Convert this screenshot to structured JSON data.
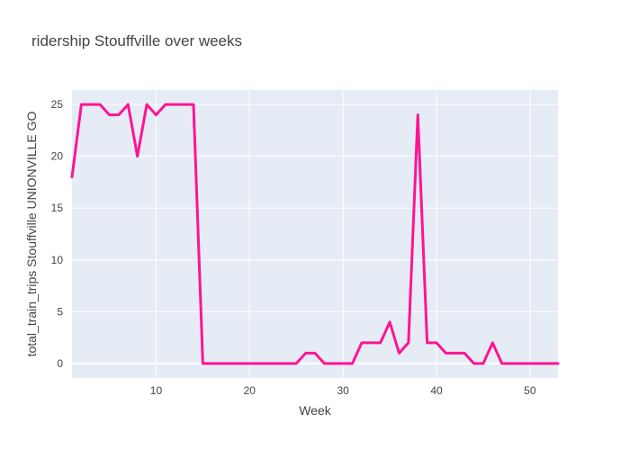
{
  "chart_data": {
    "type": "line",
    "title": "ridership Stouffville over weeks",
    "xlabel": "Week",
    "ylabel": "total_train_trips Stouffville UNIONVILLE GO",
    "xlim": [
      1,
      53
    ],
    "ylim": [
      -1.4,
      26.4
    ],
    "x_ticks": [
      10,
      20,
      30,
      40,
      50
    ],
    "y_ticks": [
      0,
      5,
      10,
      15,
      20,
      25
    ],
    "grid": true,
    "legend": "none",
    "plot_bg": "#E5ECF6",
    "series": [
      {
        "color": "#FF1493",
        "x": [
          1,
          2,
          3,
          4,
          5,
          6,
          7,
          8,
          9,
          10,
          11,
          12,
          13,
          14,
          15,
          16,
          17,
          18,
          19,
          20,
          21,
          22,
          23,
          24,
          25,
          26,
          27,
          28,
          29,
          30,
          31,
          32,
          33,
          34,
          35,
          36,
          37,
          38,
          39,
          40,
          41,
          42,
          43,
          44,
          45,
          46,
          47,
          48,
          49,
          50,
          51,
          52,
          53
        ],
        "y": [
          18,
          25,
          25,
          25,
          24,
          24,
          25,
          20,
          25,
          24,
          25,
          25,
          25,
          25,
          0,
          0,
          0,
          0,
          0,
          0,
          0,
          0,
          0,
          0,
          0,
          1,
          1,
          0,
          0,
          0,
          0,
          2,
          2,
          2,
          4,
          1,
          2,
          24,
          2,
          2,
          1,
          1,
          1,
          0,
          0,
          2,
          0,
          0,
          0,
          0,
          0,
          0,
          0
        ]
      }
    ]
  }
}
